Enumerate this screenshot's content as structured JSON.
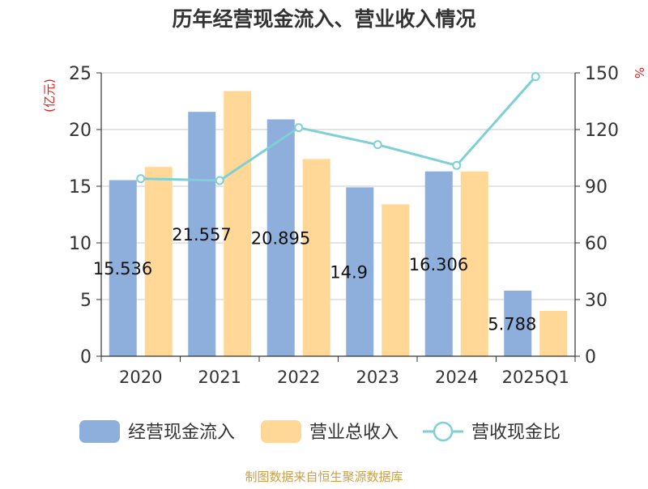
{
  "chart_data": {
    "type": "bar",
    "title": "历年经营现金流入、营业收入情况",
    "categories": [
      "2020",
      "2021",
      "2022",
      "2023",
      "2024",
      "2025Q1"
    ],
    "series": [
      {
        "name": "经营现金流入",
        "kind": "bar",
        "axis": "left",
        "color": "#8eaedb",
        "values": [
          15.536,
          21.557,
          20.895,
          14.9,
          16.306,
          5.788
        ]
      },
      {
        "name": "营业总收入",
        "kind": "bar",
        "axis": "left",
        "color": "#ffd898",
        "values": [
          16.7,
          23.4,
          17.4,
          13.4,
          16.3,
          4.0
        ]
      },
      {
        "name": "营收现金比",
        "kind": "line",
        "axis": "right",
        "color": "#7fcfd6",
        "values": [
          94,
          93,
          121,
          112,
          101,
          148
        ]
      }
    ],
    "data_labels": [
      "15.536",
      "21.557",
      "20.895",
      "14.9",
      "16.306",
      "5.788"
    ],
    "y_left": {
      "label": "(亿元)",
      "ylim": [
        0,
        25
      ],
      "ticks": [
        0,
        5,
        10,
        15,
        20,
        25
      ]
    },
    "y_right": {
      "label": "%",
      "ylim": [
        0,
        150
      ],
      "ticks": [
        0,
        30,
        60,
        90,
        120,
        150
      ]
    },
    "grid": true,
    "legend": {
      "position": "bottom"
    },
    "source": "制图数据来自恒生聚源数据库",
    "accent_colors": {
      "axis_label_red": "#e02020",
      "source_text": "#c8a048"
    }
  }
}
